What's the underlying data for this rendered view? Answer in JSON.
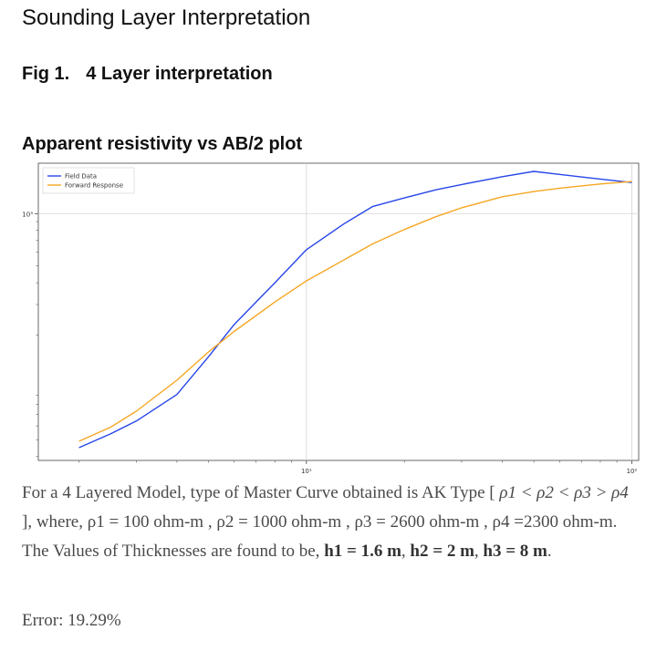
{
  "page": {
    "title": "Sounding Layer Interpretation",
    "figure_label": "Fig 1.",
    "figure_caption": "4 Layer interpretation",
    "plot_heading": "Apparent resistivity vs AB/2 plot"
  },
  "chart_data": {
    "type": "line",
    "title": "Apparent resistivity vs AB/2 plot",
    "xscale": "log",
    "yscale": "log",
    "xlim": [
      1.5,
      105
    ],
    "ylim": [
      38,
      1950
    ],
    "xlabel": "",
    "ylabel": "",
    "x_ticks": [
      {
        "value": 10,
        "label": "10¹"
      },
      {
        "value": 100,
        "label": "10²"
      }
    ],
    "y_ticks": [
      {
        "value": 1000,
        "label": "10³"
      }
    ],
    "grid": true,
    "legend_position": "top-left",
    "series": [
      {
        "name": "Field Data",
        "color": "#2746e8",
        "x": [
          2,
          2.5,
          3,
          4,
          5,
          6,
          8,
          10,
          13,
          16,
          20,
          25,
          30,
          40,
          50,
          60,
          80,
          100
        ],
        "y": [
          45,
          54,
          64,
          91,
          150,
          230,
          400,
          620,
          870,
          1100,
          1230,
          1370,
          1470,
          1630,
          1750,
          1680,
          1580,
          1510
        ]
      },
      {
        "name": "Forward Response",
        "color": "#f5a623",
        "x": [
          2,
          2.5,
          3,
          4,
          5,
          6,
          8,
          10,
          13,
          16,
          20,
          25,
          30,
          40,
          50,
          60,
          80,
          100
        ],
        "y": [
          49,
          59,
          73,
          110,
          160,
          210,
          310,
          410,
          540,
          670,
          810,
          960,
          1080,
          1250,
          1340,
          1400,
          1480,
          1530
        ]
      }
    ]
  },
  "summary": {
    "prefix": "For a 4 Layered Model, type of Master Curve obtained is AK Type [ ",
    "rho_relation": "ρ1 < ρ2 < ρ3 > ρ4",
    "middle": " ], where, ",
    "rho1": "ρ1 = 100 ohm-m",
    "rho2": "ρ2 = 1000 ohm-m",
    "rho3": "ρ3 = 2600 ohm-m",
    "rho4": "ρ4 =2300 ohm-m",
    "thickness_intro": ". The Values of Thicknesses are found to be, ",
    "h1": "h1 = 1.6 m",
    "h2": "h2 = 2 m",
    "h3": "h3 = 8 m",
    "end": "."
  },
  "error": {
    "text": "Error: 19.29%"
  }
}
